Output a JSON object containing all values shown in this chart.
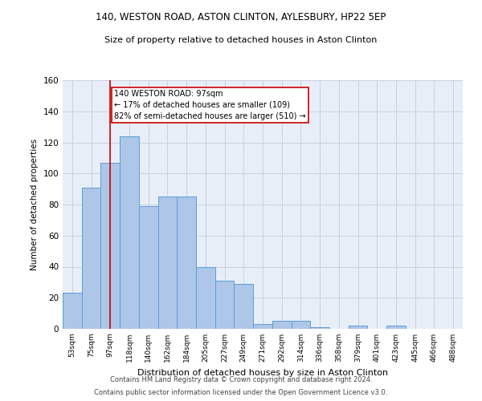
{
  "title_line1": "140, WESTON ROAD, ASTON CLINTON, AYLESBURY, HP22 5EP",
  "title_line2": "Size of property relative to detached houses in Aston Clinton",
  "xlabel": "Distribution of detached houses by size in Aston Clinton",
  "ylabel": "Number of detached properties",
  "categories": [
    "53sqm",
    "75sqm",
    "97sqm",
    "118sqm",
    "140sqm",
    "162sqm",
    "184sqm",
    "205sqm",
    "227sqm",
    "249sqm",
    "271sqm",
    "292sqm",
    "314sqm",
    "336sqm",
    "358sqm",
    "379sqm",
    "401sqm",
    "423sqm",
    "445sqm",
    "466sqm",
    "488sqm"
  ],
  "values": [
    23,
    91,
    107,
    124,
    79,
    85,
    85,
    40,
    31,
    29,
    3,
    5,
    5,
    1,
    0,
    2,
    0,
    2,
    0,
    0,
    0
  ],
  "bar_color": "#aec6e8",
  "bar_edge_color": "#5a9fd4",
  "vline_x_index": 2,
  "vline_color": "#cc0000",
  "annotation_text": "140 WESTON ROAD: 97sqm\n← 17% of detached houses are smaller (109)\n82% of semi-detached houses are larger (510) →",
  "annotation_box_color": "white",
  "annotation_box_edge_color": "#cc0000",
  "ylim": [
    0,
    160
  ],
  "yticks": [
    0,
    20,
    40,
    60,
    80,
    100,
    120,
    140,
    160
  ],
  "grid_color": "#c8d0e0",
  "background_color": "#e8eef8",
  "footer_line1": "Contains HM Land Registry data © Crown copyright and database right 2024.",
  "footer_line2": "Contains public sector information licensed under the Open Government Licence v3.0."
}
